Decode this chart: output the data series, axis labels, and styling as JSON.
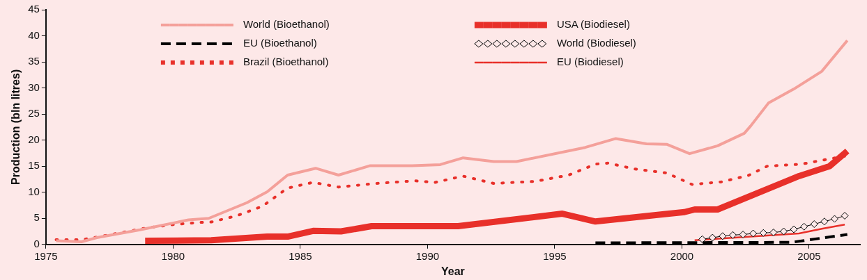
{
  "chart_data": {
    "type": "line",
    "xlabel": "Year",
    "ylabel": "Production (bln litres)",
    "xlim": [
      1975,
      2007
    ],
    "xticks": [
      1975,
      1980,
      1985,
      1990,
      1995,
      2000,
      2005
    ],
    "ylim": [
      0,
      45
    ],
    "yticks": [
      0,
      5,
      10,
      15,
      20,
      25,
      30,
      35,
      40,
      45
    ],
    "grid": false,
    "legend": "top",
    "marker": "none",
    "series": [
      {
        "name": "World (Bioethanol)",
        "color": "#f4a09a",
        "line_style": "solid",
        "x": [
          1975.4,
          1976.4,
          1977,
          1978.7,
          1980.6,
          1981.4,
          1982.9,
          1983.7,
          1984.5,
          1985.6,
          1986.5,
          1987.75,
          1989.4,
          1990.5,
          1991.4,
          1992.6,
          1993.5,
          1996.2,
          1997.4,
          1998.6,
          1999.4,
          2000.3,
          2001.4,
          2002.45,
          2002.7,
          2003.4,
          2004.4,
          2005.5,
          2006.5
        ],
        "values": [
          0.7,
          0.5,
          1.3,
          2.8,
          4.7,
          5.0,
          8.0,
          10.1,
          13.3,
          14.6,
          13.3,
          15.1,
          15.1,
          15.3,
          16.6,
          15.9,
          15.9,
          18.6,
          20.3,
          19.3,
          19.2,
          17.4,
          18.9,
          21.3,
          22.7,
          27.1,
          29.8,
          33.2,
          39.1
        ]
      },
      {
        "name": "EU (Bioethanol)",
        "color": "#000000",
        "line_style": "dashed",
        "x": [
          1996.6,
          2004.3,
          2006.5
        ],
        "values": [
          0.3,
          0.4,
          1.9
        ]
      },
      {
        "name": "Brazil (Bioethanol)",
        "color": "#e8302a",
        "line_style": "dotted",
        "x": [
          1975.4,
          1976.4,
          1977,
          1978,
          1979,
          1980,
          1981,
          1981.5,
          1982.5,
          1983.5,
          1984.5,
          1985.5,
          1986.5,
          1988,
          1989.5,
          1990.3,
          1991.4,
          1992.6,
          1994.25,
          1995.55,
          1996.6,
          1997.1,
          1998.1,
          1999.4,
          2000.4,
          2001.55,
          2002.6,
          2003.35,
          2004.7,
          2005.8,
          2006.5
        ],
        "values": [
          0.9,
          0.9,
          1.4,
          2.3,
          3.2,
          3.8,
          4.2,
          4.3,
          5.5,
          7.3,
          10.8,
          11.9,
          11.0,
          11.7,
          12.2,
          11.9,
          13.1,
          11.7,
          12.1,
          13.3,
          15.4,
          15.6,
          14.5,
          13.7,
          11.5,
          12.0,
          13.2,
          15.0,
          15.4,
          16.4,
          17.0
        ]
      },
      {
        "name": "USA (Biodiesel)",
        "color": "#e8302a",
        "line_style": "solid",
        "x": [
          1978.9,
          1981.5,
          1983.7,
          1984.5,
          1985.5,
          1986.6,
          1987.8,
          1991.2,
          1995.3,
          1996.6,
          1999.3,
          2000.1,
          2000.5,
          2001.4,
          2004.6,
          2005.8,
          2006.5
        ],
        "values": [
          0.7,
          0.8,
          1.5,
          1.5,
          2.6,
          2.5,
          3.5,
          3.5,
          5.9,
          4.4,
          5.8,
          6.2,
          6.7,
          6.7,
          13.1,
          15.0,
          17.9
        ]
      },
      {
        "name": "World (Biodiesel)",
        "color": "#000000",
        "line_style": "solid",
        "marker": "diamond",
        "x": [
          2000.8,
          2001.2,
          2001.6,
          2002,
          2002.4,
          2002.8,
          2003.2,
          2003.6,
          2004,
          2004.4,
          2004.8,
          2005.2,
          2005.6,
          2006,
          2006.4
        ],
        "values": [
          1.0,
          1.3,
          1.6,
          1.8,
          1.9,
          2.1,
          2.2,
          2.3,
          2.5,
          2.9,
          3.4,
          3.9,
          4.4,
          4.9,
          5.5
        ]
      },
      {
        "name": "EU (Biodiesel)",
        "color": "#e8302a",
        "line_style": "solid",
        "x": [
          2000.5,
          2004.6,
          2005.5,
          2006.4
        ],
        "values": [
          0.8,
          2.1,
          3.0,
          3.8
        ]
      }
    ]
  }
}
